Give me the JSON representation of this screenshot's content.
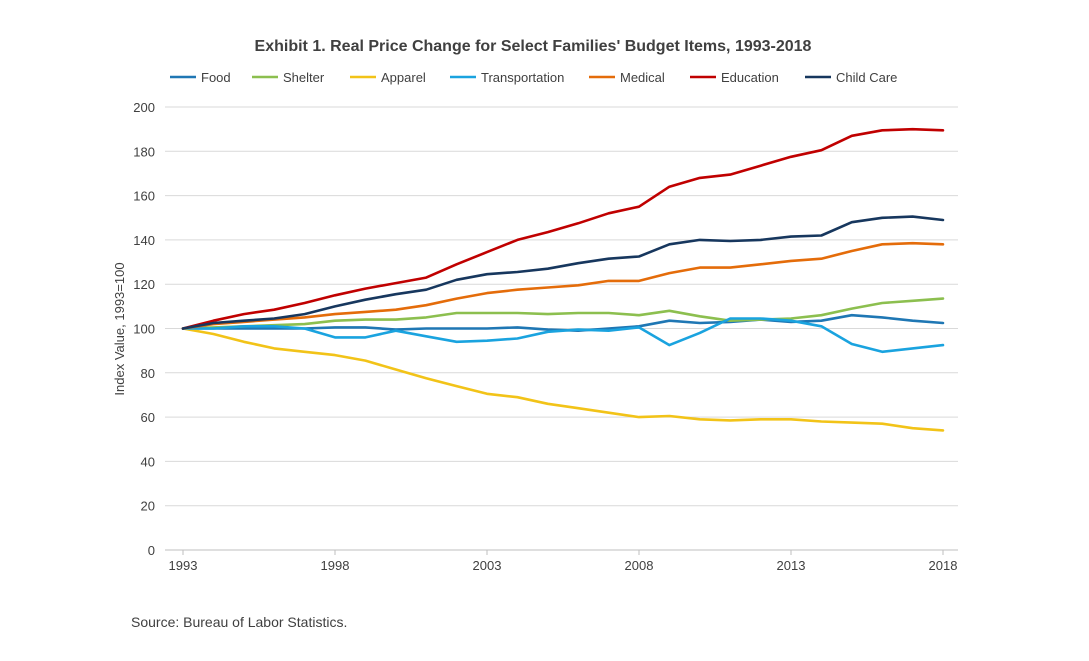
{
  "chart_data": {
    "type": "line",
    "title": "Exhibit 1. Real Price Change for Select Families' Budget Items, 1993-2018",
    "ylabel": "Index Value, 1993=100",
    "xlabel": "",
    "source": "Source: Bureau of Labor Statistics.",
    "x": [
      1993,
      1994,
      1995,
      1996,
      1997,
      1998,
      1999,
      2000,
      2001,
      2002,
      2003,
      2004,
      2005,
      2006,
      2007,
      2008,
      2009,
      2010,
      2011,
      2012,
      2013,
      2014,
      2015,
      2016,
      2017,
      2018
    ],
    "xticks": [
      "1993",
      "1998",
      "2003",
      "2008",
      "2013",
      "2018"
    ],
    "yticks": [
      "0",
      "20",
      "40",
      "60",
      "80",
      "100",
      "120",
      "140",
      "160",
      "180",
      "200"
    ],
    "ylim": [
      0,
      200
    ],
    "xlim": [
      1993,
      2018
    ],
    "grid": true,
    "legend_position": "top",
    "series": [
      {
        "name": "Food",
        "color": "#1f77b4",
        "values": [
          100,
          100,
          100,
          100,
          100,
          100.5,
          100.5,
          99.5,
          100,
          100,
          100,
          100.5,
          99.5,
          99,
          100,
          101,
          103.5,
          102.5,
          103,
          104,
          103,
          103.5,
          106,
          105,
          103.5,
          102.5
        ]
      },
      {
        "name": "Shelter",
        "color": "#8cbf4f",
        "values": [
          100,
          100.5,
          101,
          101.5,
          102,
          103.5,
          104,
          104,
          105,
          107,
          107,
          107,
          106.5,
          107,
          107,
          106,
          108,
          105.5,
          103.5,
          104,
          104.5,
          106,
          109,
          111.5,
          112.5,
          113.5
        ]
      },
      {
        "name": "Apparel",
        "color": "#f2c318",
        "values": [
          100,
          97.5,
          94,
          91,
          89.5,
          88,
          85.5,
          81.5,
          77.5,
          74,
          70.5,
          69,
          66,
          64,
          62,
          60,
          60.5,
          59,
          58.5,
          59,
          59,
          58,
          57.5,
          57,
          55,
          54
        ]
      },
      {
        "name": "Transportation",
        "color": "#1aa3df",
        "values": [
          100,
          100,
          101,
          101,
          100,
          96,
          96,
          99,
          96.5,
          94,
          94.5,
          95.5,
          98.5,
          99.5,
          99,
          100.5,
          92.5,
          98,
          104.5,
          104.5,
          103.5,
          101,
          93,
          89.5,
          91,
          92.5
        ]
      },
      {
        "name": "Medical",
        "color": "#e46c0a",
        "values": [
          100,
          102,
          103,
          104,
          105,
          106.5,
          107.5,
          108.5,
          110.5,
          113.5,
          116,
          117.5,
          118.5,
          119.5,
          121.5,
          121.5,
          125,
          127.5,
          127.5,
          129,
          130.5,
          131.5,
          135,
          138,
          138.5,
          138
        ]
      },
      {
        "name": "Education",
        "color": "#c00000",
        "values": [
          100,
          103.5,
          106.5,
          108.5,
          111.5,
          115,
          118,
          120.5,
          123,
          129,
          134.5,
          140,
          143.5,
          147.5,
          152,
          155,
          164,
          168,
          169.5,
          173.5,
          177.5,
          180.5,
          187,
          189.5,
          190,
          189.5
        ]
      },
      {
        "name": "Child Care",
        "color": "#17375e",
        "values": [
          100,
          102.5,
          103.5,
          104.5,
          106.5,
          110,
          113,
          115.5,
          117.5,
          122,
          124.5,
          125.5,
          127,
          129.5,
          131.5,
          132.5,
          138,
          140,
          139.5,
          140,
          141.5,
          142,
          148,
          150,
          150.5,
          149
        ]
      }
    ]
  }
}
